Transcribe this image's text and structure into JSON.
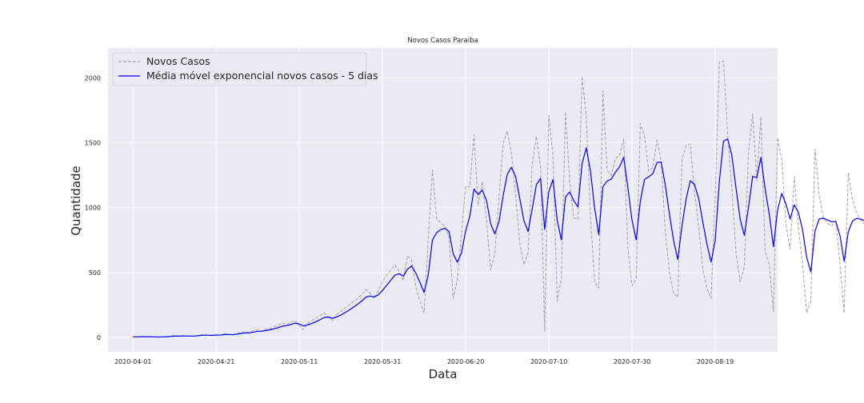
{
  "chart_data": {
    "type": "line",
    "title": "Novos Casos Paraiba",
    "xlabel": "Data",
    "ylabel": "Quantidade",
    "x_start": "2020-04-01",
    "x_end": "2020-08-28",
    "xlim": [
      "2020-03-26",
      "2020-09-03"
    ],
    "ylim": [
      -110,
      2230
    ],
    "x_ticks": [
      "2020-04-01",
      "2020-04-21",
      "2020-05-11",
      "2020-05-31",
      "2020-06-20",
      "2020-07-10",
      "2020-07-30",
      "2020-08-19"
    ],
    "y_ticks": [
      0,
      500,
      1000,
      1500,
      2000
    ],
    "grid": true,
    "legend_position": "upper left",
    "colors": {
      "background": "#eaeaf2",
      "grid": "#ffffff",
      "novos_casos": "#a8a8a8",
      "media_movel": "#0000ff"
    },
    "series": [
      {
        "name": "Novos Casos",
        "style": "dashed",
        "values": [
          5,
          6,
          7,
          5,
          6,
          4,
          3,
          5,
          8,
          12,
          18,
          10,
          15,
          12,
          10,
          14,
          20,
          25,
          18,
          15,
          22,
          18,
          30,
          25,
          20,
          35,
          40,
          45,
          38,
          55,
          60,
          50,
          65,
          70,
          85,
          95,
          110,
          100,
          120,
          130,
          90,
          60,
          110,
          130,
          150,
          170,
          190,
          160,
          130,
          180,
          200,
          230,
          250,
          280,
          300,
          330,
          370,
          340,
          300,
          360,
          430,
          480,
          520,
          560,
          510,
          440,
          630,
          600,
          390,
          280,
          190,
          750,
          1290,
          920,
          880,
          860,
          770,
          300,
          450,
          800,
          1160,
          1160,
          1560,
          1020,
          1200,
          900,
          520,
          640,
          1070,
          1490,
          1590,
          1420,
          1100,
          730,
          560,
          650,
          1340,
          1550,
          1320,
          50,
          1710,
          1400,
          280,
          450,
          1740,
          1200,
          920,
          910,
          2010,
          1700,
          930,
          430,
          380,
          1900,
          1290,
          1250,
          1380,
          1400,
          1530,
          690,
          400,
          450,
          1650,
          1550,
          1280,
          1310,
          1520,
          1360,
          820,
          500,
          340,
          310,
          1370,
          1480,
          1490,
          1130,
          860,
          530,
          380,
          300,
          1080,
          2120,
          2130,
          1560,
          1150,
          650,
          430,
          540,
          1430,
          1720,
          1210,
          1700,
          660,
          560,
          200,
          1540,
          1370,
          870,
          680,
          1240,
          850,
          560,
          190,
          280,
          1450,
          1100,
          930,
          880,
          860,
          900,
          570,
          190,
          1270,
          1060,
          960,
          900,
          870,
          580,
          160,
          170,
          890,
          1000,
          880
        ]
      },
      {
        "name": "Média móvel exponencial novos casos - 5 dias",
        "style": "solid",
        "values": [
          5,
          5,
          6,
          6,
          6,
          5,
          4,
          5,
          6,
          8,
          11,
          11,
          12,
          12,
          11,
          12,
          15,
          18,
          18,
          17,
          19,
          19,
          23,
          23,
          22,
          26,
          31,
          36,
          36,
          42,
          48,
          49,
          54,
          60,
          68,
          77,
          88,
          92,
          101,
          111,
          104,
          90,
          97,
          108,
          122,
          138,
          155,
          157,
          148,
          159,
          173,
          192,
          211,
          234,
          256,
          281,
          311,
          320,
          313,
          329,
          363,
          402,
          441,
          481,
          491,
          474,
          526,
          551,
          497,
          425,
          347,
          481,
          751,
          807,
          831,
          841,
          817,
          645,
          580,
          653,
          822,
          935,
          1143,
          1102,
          1135,
          1057,
          878,
          799,
          889,
          1089,
          1256,
          1311,
          1241,
          1071,
          901,
          817,
          991,
          1177,
          1225,
          833,
          1125,
          1217,
          905,
          753,
          1082,
          1121,
          1054,
          1006,
          1341,
          1461,
          1284,
          999,
          793,
          1162,
          1205,
          1220,
          1273,
          1315,
          1387,
          1155,
          903,
          752,
          1051,
          1217,
          1238,
          1262,
          1348,
          1352,
          1175,
          950,
          747,
          602,
          858,
          1065,
          1207,
          1181,
          1074,
          893,
          722,
          581,
          747,
          1205,
          1513,
          1529,
          1403,
          1152,
          911,
          787,
          1001,
          1241,
          1231,
          1387,
          1145,
          950,
          700,
          980,
          1110,
          1030,
          913,
          1022,
          965,
          830,
          617,
          505,
          820,
          913,
          919,
          906,
          891,
          894,
          786,
          587,
          815,
          897,
          918,
          912,
          898,
          792,
          581,
          444,
          593,
          729,
          779
        ]
      }
    ]
  }
}
